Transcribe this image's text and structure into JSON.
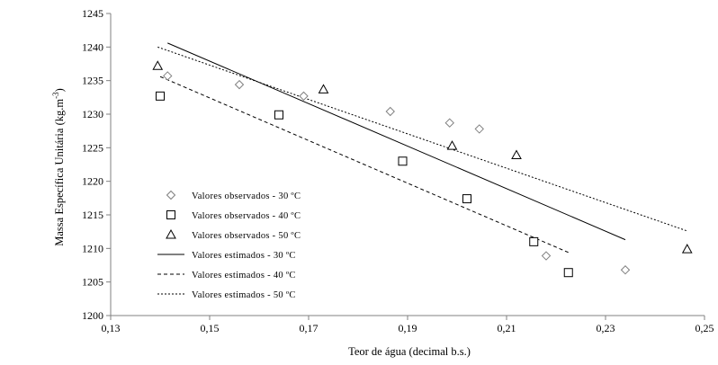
{
  "chart_data": {
    "type": "scatter",
    "title": "",
    "xlabel": "Teor de água (decimal  b.s.)",
    "ylabel": "Massa Específica  Unitária  (kg.m",
    "ylabel_superscript": "-3",
    "ylabel_suffix": ")",
    "xlim": [
      0.13,
      0.25
    ],
    "ylim": [
      1200,
      1245
    ],
    "x_ticks": [
      0.13,
      0.15,
      0.17,
      0.19,
      0.21,
      0.23,
      0.25
    ],
    "x_tick_labels": [
      "0,13",
      "0,15",
      "0,17",
      "0,19",
      "0,21",
      "0,23",
      "0,25"
    ],
    "y_ticks": [
      1200,
      1205,
      1210,
      1215,
      1220,
      1225,
      1230,
      1235,
      1240,
      1245
    ],
    "y_tick_labels": [
      "1200",
      "1205",
      "1210",
      "1215",
      "1220",
      "1225",
      "1230",
      "1235",
      "1240",
      "1245"
    ],
    "grid": false,
    "legend_position": "lower-left",
    "series": [
      {
        "name": "Valores observados - 30 ºC",
        "kind": "points",
        "marker": "diamond",
        "x": [
          0.1415,
          0.156,
          0.169,
          0.1865,
          0.1985,
          0.2045,
          0.218,
          0.234
        ],
        "y": [
          1235.7,
          1234.4,
          1232.7,
          1230.4,
          1228.7,
          1227.8,
          1208.9,
          1206.8
        ]
      },
      {
        "name": "Valores observados - 40 ºC",
        "kind": "points",
        "marker": "square",
        "x": [
          0.14,
          0.164,
          0.189,
          0.202,
          0.2155,
          0.2225
        ],
        "y": [
          1232.7,
          1229.9,
          1223.0,
          1217.4,
          1211.0,
          1206.4
        ]
      },
      {
        "name": "Valores observados - 50 ºC",
        "kind": "points",
        "marker": "triangle",
        "x": [
          0.1395,
          0.173,
          0.199,
          0.212,
          0.2465
        ],
        "y": [
          1237.2,
          1233.7,
          1225.3,
          1223.9,
          1209.9
        ]
      },
      {
        "name": "Valores estimados - 30 ºC",
        "kind": "line",
        "dash": "solid",
        "x": [
          0.1415,
          0.234
        ],
        "y": [
          1240.6,
          1211.3
        ]
      },
      {
        "name": "Valores estimados - 40 ºC",
        "kind": "line",
        "dash": "dashed",
        "x": [
          0.14,
          0.2225
        ],
        "y": [
          1235.6,
          1209.4
        ]
      },
      {
        "name": "Valores estimados - 50 ºC",
        "kind": "line",
        "dash": "dotted",
        "x": [
          0.1395,
          0.2465
        ],
        "y": [
          1240.0,
          1212.6
        ]
      }
    ]
  }
}
